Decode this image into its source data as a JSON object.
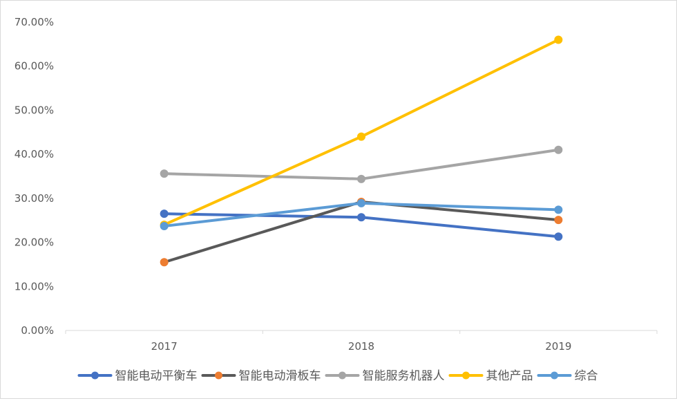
{
  "chart_data": {
    "type": "line",
    "title": "",
    "xlabel": "",
    "ylabel": "",
    "categories": [
      "2017",
      "2018",
      "2019"
    ],
    "ylim": [
      0,
      0.7
    ],
    "yticks": [
      0,
      0.1,
      0.2,
      0.3,
      0.4,
      0.5,
      0.6,
      0.7
    ],
    "ytick_labels": [
      "0.00%",
      "10.00%",
      "20.00%",
      "30.00%",
      "40.00%",
      "50.00%",
      "60.00%",
      "70.00%"
    ],
    "y_format": "percent",
    "grid": false,
    "legend_position": "bottom",
    "series": [
      {
        "name": "智能电动平衡车",
        "values": [
          0.265,
          0.257,
          0.213
        ],
        "line_color": "#4472c4",
        "marker_color": "#4472c4"
      },
      {
        "name": "智能电动滑板车",
        "values": [
          0.155,
          0.292,
          0.251
        ],
        "line_color": "#595959",
        "marker_color": "#ed7d31"
      },
      {
        "name": "智能服务机器人",
        "values": [
          0.356,
          0.344,
          0.41
        ],
        "line_color": "#a5a5a5",
        "marker_color": "#a5a5a5"
      },
      {
        "name": "其他产品",
        "values": [
          0.24,
          0.44,
          0.66
        ],
        "line_color": "#ffc000",
        "marker_color": "#ffc000"
      },
      {
        "name": "综合",
        "values": [
          0.237,
          0.289,
          0.274
        ],
        "line_color": "#5b9bd5",
        "marker_color": "#5b9bd5"
      }
    ]
  }
}
